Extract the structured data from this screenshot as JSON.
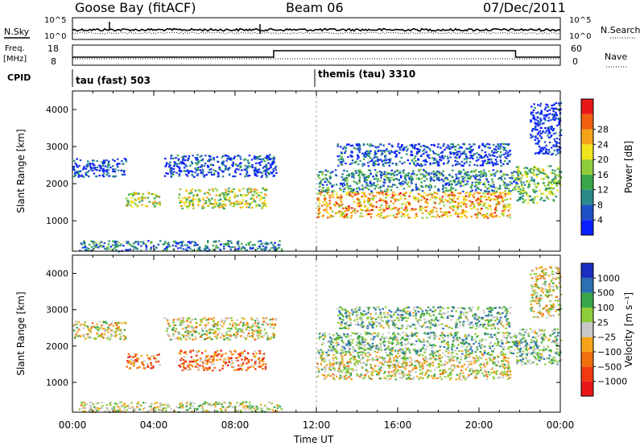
{
  "header": {
    "station": "Goose Bay (fitACF)",
    "beam": "Beam 06",
    "date": "07/Dec/2011"
  },
  "top_panels": {
    "nsky_label": "N.Sky",
    "nsearch_label": "N.Search",
    "noise_ticks": [
      "10^5",
      "10^0"
    ],
    "freq_label": "Freq.",
    "freq_unit": "[MHz]",
    "freq_ticks": [
      "18",
      "8"
    ],
    "nave_ticks": [
      "60",
      "0"
    ],
    "nave_label": "Nave",
    "cpid_label": "CPID",
    "cpid_left": "tau (fast) 503",
    "cpid_right": "themis (tau) 3310"
  },
  "chart_data": [
    {
      "type": "heatmap",
      "name": "power",
      "ylabel": "Slant Range [km]",
      "xlabel": "Time UT",
      "ylim": [
        180,
        4500
      ],
      "x_ticks": [
        "00:00",
        "04:00",
        "08:00",
        "12:00",
        "16:00",
        "20:00",
        "00:00"
      ],
      "y_ticks": [
        "1000",
        "2000",
        "3000",
        "4000"
      ],
      "colorbar_label": "Power [dB]",
      "colorbar_ticks": [
        "4",
        "8",
        "12",
        "16",
        "20",
        "24",
        "28"
      ],
      "colorbar_colors": [
        "#0a1fff",
        "#2050c8",
        "#2a8a8a",
        "#3aa64a",
        "#8fcc3a",
        "#f2e41e",
        "#f5a419",
        "#f06010",
        "#e81818"
      ],
      "clusters": [
        {
          "t0": 0.3,
          "t1": 10.3,
          "r0": 200,
          "r1": 480,
          "level": 0.25
        },
        {
          "t0": 2.6,
          "t1": 4.3,
          "r0": 1400,
          "r1": 1800,
          "level": 0.55
        },
        {
          "t0": 5.2,
          "t1": 9.5,
          "r0": 1350,
          "r1": 1900,
          "level": 0.55
        },
        {
          "t0": 0.0,
          "t1": 2.6,
          "r0": 2200,
          "r1": 2700,
          "level": 0.1
        },
        {
          "t0": 4.5,
          "t1": 10.0,
          "r0": 2200,
          "r1": 2800,
          "level": 0.15
        },
        {
          "t0": 12.0,
          "t1": 21.5,
          "r0": 1100,
          "r1": 1800,
          "level": 0.7
        },
        {
          "t0": 12.0,
          "t1": 22.0,
          "r0": 1800,
          "r1": 2400,
          "level": 0.3
        },
        {
          "t0": 13.0,
          "t1": 21.5,
          "r0": 2500,
          "r1": 3100,
          "level": 0.15
        },
        {
          "t0": 21.8,
          "t1": 24.0,
          "r0": 1500,
          "r1": 2500,
          "level": 0.45
        },
        {
          "t0": 22.5,
          "t1": 24.0,
          "r0": 2800,
          "r1": 4200,
          "level": 0.05
        }
      ]
    },
    {
      "type": "heatmap",
      "name": "velocity",
      "ylabel": "Slant Range [km]",
      "xlabel": "Time UT",
      "ylim": [
        180,
        4500
      ],
      "x_ticks": [
        "00:00",
        "04:00",
        "08:00",
        "12:00",
        "16:00",
        "20:00",
        "00:00"
      ],
      "y_ticks": [
        "1000",
        "2000",
        "3000",
        "4000"
      ],
      "colorbar_label": "Velocity [m s⁻¹]",
      "colorbar_ticks": [
        "1000",
        "500",
        "100",
        "25",
        "−25",
        "−100",
        "−500",
        "−1000"
      ],
      "colorbar_colors": [
        "#1a2fc0",
        "#2a70b0",
        "#3aa64a",
        "#8fcc3a",
        "#c8c8c8",
        "#f5a419",
        "#f07010",
        "#f03a10",
        "#e81818"
      ],
      "clusters": [
        {
          "t0": 0.3,
          "t1": 10.3,
          "r0": 200,
          "r1": 480,
          "level": 0.45
        },
        {
          "t0": 2.6,
          "t1": 4.3,
          "r0": 1400,
          "r1": 1800,
          "level": 0.7
        },
        {
          "t0": 5.2,
          "t1": 9.5,
          "r0": 1350,
          "r1": 1900,
          "level": 0.7
        },
        {
          "t0": 0.0,
          "t1": 2.6,
          "r0": 2200,
          "r1": 2700,
          "level": 0.5
        },
        {
          "t0": 4.5,
          "t1": 10.0,
          "r0": 2200,
          "r1": 2800,
          "level": 0.5
        },
        {
          "t0": 12.0,
          "t1": 21.5,
          "r0": 1100,
          "r1": 1800,
          "level": 0.5
        },
        {
          "t0": 12.0,
          "t1": 22.0,
          "r0": 1800,
          "r1": 2400,
          "level": 0.35
        },
        {
          "t0": 13.0,
          "t1": 21.5,
          "r0": 2500,
          "r1": 3100,
          "level": 0.35
        },
        {
          "t0": 21.8,
          "t1": 24.0,
          "r0": 1500,
          "r1": 2500,
          "level": 0.35
        },
        {
          "t0": 22.5,
          "t1": 24.0,
          "r0": 2800,
          "r1": 4200,
          "level": 0.5
        }
      ]
    }
  ]
}
